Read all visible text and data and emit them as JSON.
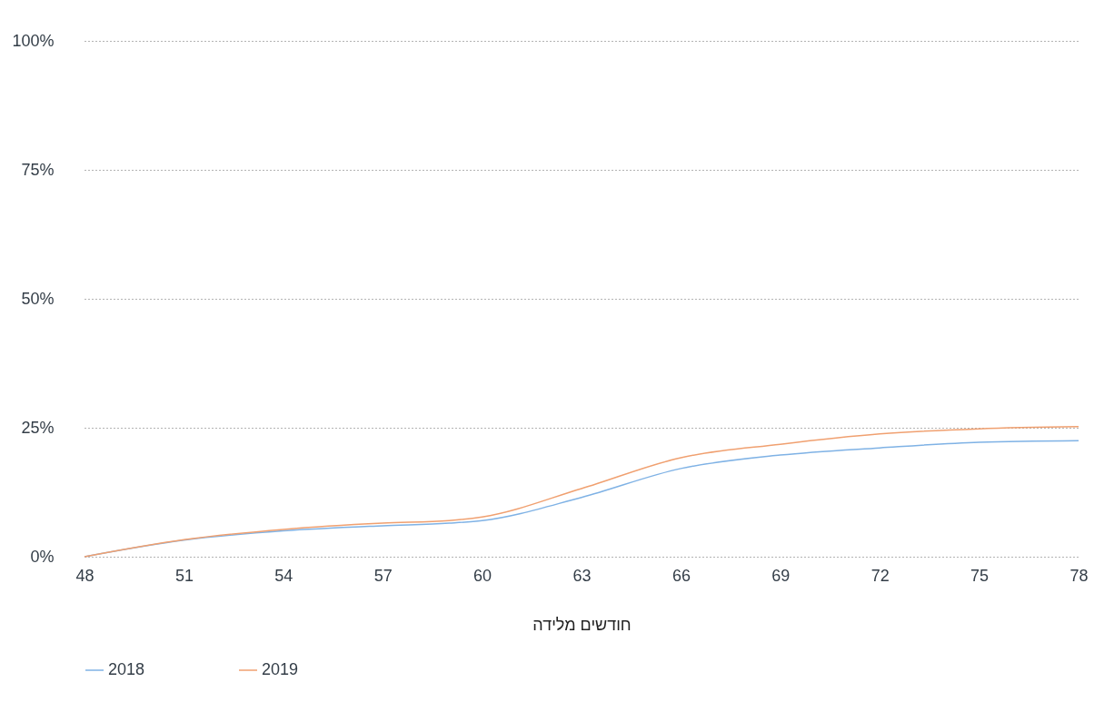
{
  "chart_data": {
    "type": "line",
    "xlabel": "חודשים מלידה",
    "x": [
      48,
      51,
      54,
      57,
      59,
      60,
      63,
      66,
      69,
      72,
      75,
      78
    ],
    "series": [
      {
        "name": "2018",
        "color": "#7fb2e5",
        "values": [
          0,
          3.2,
          5.0,
          6.0,
          6.5,
          7.0,
          11.5,
          17.1,
          19.7,
          21.1,
          22.2,
          22.5
        ]
      },
      {
        "name": "2019",
        "color": "#f0a070",
        "values": [
          0,
          3.3,
          5.3,
          6.5,
          7.0,
          7.7,
          13.2,
          19.2,
          21.8,
          23.8,
          24.8,
          25.2
        ]
      }
    ],
    "xlim": [
      48,
      78
    ],
    "xticks": [
      48,
      51,
      54,
      57,
      60,
      63,
      66,
      69,
      72,
      75,
      78
    ],
    "ylim": [
      0,
      100
    ],
    "yticks": [
      {
        "value": 0,
        "label": "0%"
      },
      {
        "value": 25,
        "label": "25%"
      },
      {
        "value": 50,
        "label": "50%"
      },
      {
        "value": 75,
        "label": "75%"
      },
      {
        "value": 100,
        "label": "100%"
      }
    ],
    "grid": "y",
    "legend": "bottom",
    "line_style": "solid",
    "marker": "none"
  }
}
